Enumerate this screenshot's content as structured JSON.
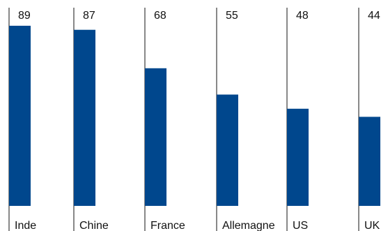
{
  "chart_data": {
    "type": "bar",
    "categories": [
      "Inde",
      "Chine",
      "France",
      "Allemagne",
      "US",
      "UK"
    ],
    "values": [
      89,
      87,
      68,
      55,
      48,
      44
    ],
    "ylim": [
      0,
      100
    ],
    "grid": false,
    "colors": {
      "bar": "#00478d",
      "divider": "#111111",
      "text": "#111111",
      "background": "#ffffff"
    }
  }
}
